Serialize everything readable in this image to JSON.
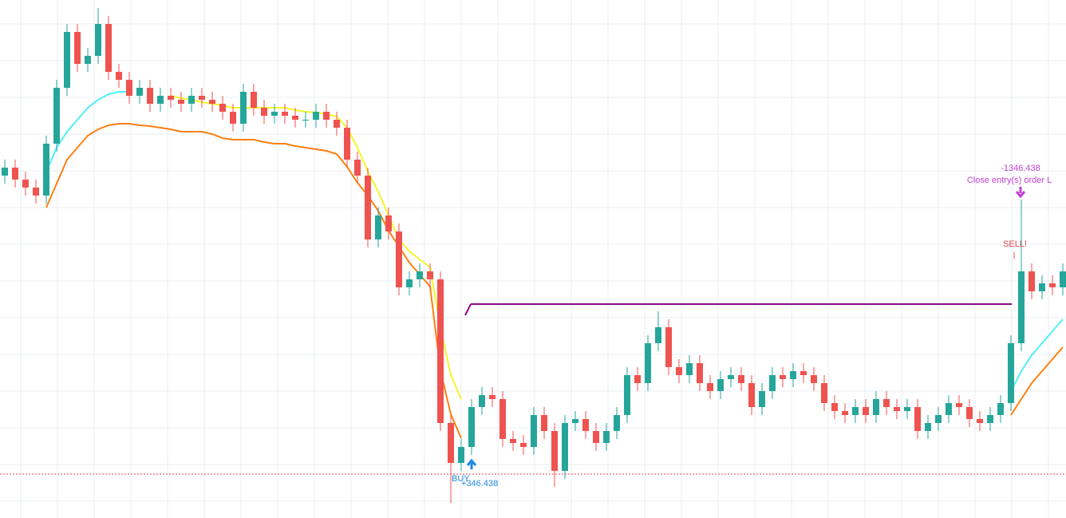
{
  "chart_data": {
    "type": "candlestick",
    "ylim": [
      0,
      649
    ],
    "up_color": "#26a69a",
    "down_color": "#ef5350",
    "open": [
      429,
      439,
      424,
      414,
      404,
      469,
      539,
      609,
      569,
      579,
      619,
      559,
      549,
      529,
      539,
      519,
      529,
      524,
      519,
      529,
      524,
      519,
      509,
      494,
      534,
      514,
      504,
      509,
      504,
      499,
      499,
      509,
      499,
      489,
      449,
      429,
      349,
      379,
      359,
      289,
      299,
      309,
      299,
      119,
      69,
      89,
      139,
      154,
      149,
      99,
      94,
      89,
      129,
      109,
      59,
      119,
      124,
      109,
      94,
      109,
      129,
      179,
      169,
      219,
      239,
      189,
      179,
      194,
      169,
      159,
      174,
      179,
      169,
      139,
      159,
      179,
      174,
      184,
      179,
      169,
      144,
      134,
      129,
      139,
      129,
      149,
      139,
      134,
      139,
      109,
      119,
      129,
      144,
      139,
      124,
      119,
      129,
      144,
      219,
      309,
      284,
      294,
      289
    ],
    "high": [
      449,
      449,
      434,
      424,
      479,
      549,
      619,
      619,
      589,
      639,
      629,
      569,
      559,
      549,
      549,
      539,
      539,
      534,
      539,
      539,
      534,
      529,
      519,
      544,
      544,
      524,
      519,
      519,
      514,
      509,
      519,
      519,
      509,
      499,
      459,
      439,
      389,
      389,
      369,
      309,
      319,
      319,
      309,
      129,
      99,
      149,
      164,
      164,
      159,
      109,
      104,
      139,
      139,
      119,
      129,
      134,
      134,
      119,
      119,
      139,
      189,
      189,
      229,
      259,
      249,
      199,
      204,
      204,
      179,
      184,
      189,
      189,
      179,
      169,
      189,
      189,
      194,
      194,
      189,
      179,
      154,
      144,
      149,
      149,
      159,
      159,
      149,
      149,
      149,
      129,
      139,
      154,
      154,
      149,
      134,
      139,
      154,
      229,
      399,
      319,
      304,
      304,
      319
    ],
    "low": [
      419,
      414,
      404,
      394,
      394,
      459,
      529,
      559,
      559,
      569,
      549,
      539,
      519,
      519,
      509,
      509,
      514,
      509,
      509,
      514,
      509,
      499,
      484,
      484,
      504,
      494,
      494,
      494,
      489,
      489,
      489,
      489,
      479,
      439,
      419,
      339,
      339,
      349,
      279,
      279,
      289,
      289,
      109,
      19,
      59,
      79,
      129,
      139,
      89,
      84,
      79,
      79,
      99,
      39,
      49,
      109,
      99,
      84,
      84,
      99,
      119,
      159,
      159,
      209,
      179,
      169,
      169,
      159,
      149,
      149,
      164,
      159,
      129,
      129,
      149,
      164,
      164,
      169,
      159,
      134,
      124,
      119,
      119,
      119,
      119,
      129,
      124,
      124,
      99,
      99,
      109,
      119,
      129,
      114,
      109,
      109,
      119,
      134,
      209,
      274,
      274,
      279,
      279
    ],
    "close": [
      439,
      424,
      414,
      404,
      469,
      539,
      609,
      569,
      579,
      619,
      559,
      549,
      529,
      539,
      519,
      529,
      524,
      519,
      529,
      524,
      519,
      509,
      494,
      534,
      514,
      504,
      509,
      504,
      499,
      499,
      509,
      499,
      489,
      449,
      429,
      349,
      379,
      359,
      289,
      299,
      309,
      299,
      119,
      69,
      89,
      139,
      154,
      149,
      99,
      94,
      89,
      129,
      109,
      59,
      119,
      124,
      109,
      94,
      109,
      129,
      179,
      169,
      219,
      239,
      189,
      179,
      194,
      169,
      159,
      174,
      179,
      169,
      139,
      159,
      179,
      174,
      184,
      179,
      169,
      144,
      134,
      129,
      139,
      129,
      149,
      139,
      134,
      139,
      109,
      119,
      129,
      144,
      139,
      124,
      119,
      129,
      144,
      219,
      309,
      284,
      294,
      289,
      309
    ],
    "lines": [
      {
        "color": "#ff7f0e",
        "values": [
          null,
          null,
          null,
          null,
          389,
          419,
          449,
          464,
          479,
          487,
          492,
          494,
          494,
          492,
          491,
          489,
          487,
          484,
          484,
          484,
          481,
          476,
          474,
          474,
          474,
          471,
          469,
          469,
          466,
          464,
          462,
          460,
          456,
          440,
          420,
          404,
          385,
          360,
          340,
          320,
          305,
          290,
          185,
          130,
          100,
          null,
          null,
          null,
          null,
          null,
          null,
          null,
          null,
          null,
          null,
          null,
          null,
          null,
          null,
          null,
          null,
          null,
          null,
          null,
          null,
          null,
          null,
          null,
          null,
          null,
          null,
          null,
          null,
          null,
          null,
          null,
          null,
          null,
          null,
          null,
          null,
          null,
          null,
          null,
          null,
          null,
          null,
          null,
          null,
          null,
          null,
          null,
          null,
          null,
          null,
          null,
          null,
          129,
          149,
          169,
          184,
          199,
          214
        ]
      },
      {
        "color": "#4ef0f5",
        "values": [
          null,
          null,
          null,
          null,
          434,
          464,
          484,
          499,
          514,
          524,
          531,
          534,
          534,
          null,
          null,
          null,
          null,
          null,
          null,
          null,
          null,
          null,
          null,
          null,
          null,
          null,
          null,
          null,
          null,
          null,
          null,
          null,
          null,
          null,
          null,
          null,
          null,
          null,
          null,
          null,
          null,
          null,
          null,
          null,
          null,
          null,
          null,
          null,
          null,
          null,
          null,
          null,
          null,
          null,
          null,
          null,
          null,
          null,
          null,
          null,
          null,
          null,
          null,
          null,
          null,
          null,
          null,
          null,
          null,
          null,
          null,
          null,
          null,
          null,
          null,
          null,
          null,
          null,
          null,
          null,
          null,
          null,
          null,
          null,
          null,
          null,
          null,
          null,
          null,
          null,
          null,
          null,
          null,
          null,
          null,
          null,
          null,
          159,
          184,
          204,
          219,
          234,
          249
        ]
      },
      {
        "color": "#f5f52a",
        "values": [
          null,
          null,
          null,
          null,
          null,
          null,
          null,
          null,
          null,
          null,
          null,
          null,
          null,
          null,
          null,
          null,
          529,
          526,
          524,
          521,
          519,
          517,
          514,
          514,
          514,
          514,
          514,
          514,
          511,
          509,
          508,
          506,
          503,
          489,
          464,
          434,
          409,
          379,
          349,
          334,
          324,
          314,
          239,
          179,
          149,
          null,
          null,
          null,
          null,
          null,
          null,
          null,
          null,
          null,
          null,
          null,
          null,
          null,
          null,
          null,
          null,
          null,
          null,
          null,
          null,
          null,
          null,
          null,
          null,
          null,
          null,
          null,
          null,
          null,
          null,
          null,
          null,
          null,
          null,
          null,
          null,
          null,
          null,
          null,
          null,
          null,
          null,
          null,
          null,
          null,
          null,
          null,
          null,
          null,
          null,
          null,
          null,
          null,
          null,
          null,
          null,
          null,
          null
        ]
      }
    ],
    "levels": [
      {
        "value": 268,
        "color": "#8b0a8b"
      },
      {
        "value": 55,
        "color": "#e04a4a"
      }
    ],
    "annotations": {
      "buy": "BUY",
      "buy_profit": "+346.438",
      "sell": "SELL!",
      "close_note": "Close entry(s) order L",
      "close_profit": "-1346.438"
    }
  }
}
